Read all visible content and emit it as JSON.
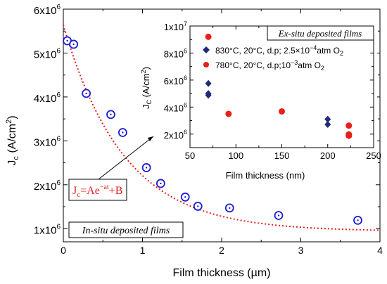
{
  "chart_data": [
    {
      "type": "scatter",
      "panel": "main",
      "xlabel": "Film thickness (µm)",
      "ylabel_main": "J",
      "ylabel_sub": "c",
      "ylabel_rest": " (A/cm",
      "ylabel_sup": "2",
      "ylabel_close": ")",
      "xlim": [
        0,
        4
      ],
      "ylim": [
        700000,
        6000000
      ],
      "x_ticks": [
        0,
        1,
        2,
        3,
        4
      ],
      "y_ticks": [
        {
          "value": 1000000,
          "mant": "1x10",
          "exp": "6"
        },
        {
          "value": 2000000,
          "mant": "2x10",
          "exp": "6"
        },
        {
          "value": 3000000,
          "mant": "3x10",
          "exp": "6"
        },
        {
          "value": 4000000,
          "mant": "4x10",
          "exp": "6"
        },
        {
          "value": 5000000,
          "mant": "5x10",
          "exp": "6"
        },
        {
          "value": 6000000,
          "mant": "6x10",
          "exp": "6"
        }
      ],
      "series": [
        {
          "marker": "open-circle-dot",
          "color": "#1c1cd6",
          "points": [
            [
              0.05,
              5280000
            ],
            [
              0.13,
              5200000
            ],
            [
              0.29,
              4080000
            ],
            [
              0.6,
              3600000
            ],
            [
              0.75,
              3190000
            ],
            [
              1.05,
              2390000
            ],
            [
              1.23,
              2030000
            ],
            [
              1.54,
              1720000
            ],
            [
              1.7,
              1510000
            ],
            [
              2.1,
              1470000
            ],
            [
              2.72,
              1300000
            ],
            [
              3.72,
              1190000
            ]
          ]
        }
      ],
      "fit": {
        "color": "#e0201e",
        "A": 4700000,
        "a": 1.31,
        "B": 940000,
        "label_pre": "J",
        "label_sub": "c",
        "label_mid": "=Ae",
        "label_sup": "−at",
        "label_post": "+B"
      },
      "annotation": "In-situ deposited films"
    },
    {
      "type": "scatter",
      "panel": "inset",
      "xlabel": "Film thickness (nm)",
      "ylabel_main": "J",
      "ylabel_sub": "C",
      "ylabel_rest": " (A/cm",
      "ylabel_sup": "2",
      "ylabel_close": ")",
      "xlim": [
        50,
        250
      ],
      "ylim": [
        1000000,
        10000000
      ],
      "x_ticks": [
        50,
        100,
        150,
        200,
        250
      ],
      "y_ticks": [
        {
          "value": 2000000,
          "mant": "2x10",
          "exp": "6"
        },
        {
          "value": 4000000,
          "mant": "4x10",
          "exp": "6"
        },
        {
          "value": 6000000,
          "mant": "6x10",
          "exp": "6"
        },
        {
          "value": 8000000,
          "mant": "8x10",
          "exp": "6"
        },
        {
          "value": 10000000,
          "mant": "1x10",
          "exp": "7"
        }
      ],
      "title": "Ex-situ deposited films",
      "series": [
        {
          "marker": "diamond",
          "color": "#1f2a7a",
          "legend_pre": "830°C, 20°C, d.p; 2.5×10",
          "legend_sup": "−4",
          "legend_post": "atm O",
          "legend_sub": "2",
          "points": [
            [
              70,
              5750000
            ],
            [
              70,
              5000000
            ],
            [
              70,
              4880000
            ],
            [
              200,
              3100000
            ],
            [
              200,
              2720000
            ]
          ]
        },
        {
          "marker": "filled-circle",
          "color": "#e8201a",
          "legend_pre": "780°C, 20°C, d.p;10",
          "legend_sup": "−3",
          "legend_post": "atm O",
          "legend_sub": "2",
          "points": [
            [
              70,
              9200000
            ],
            [
              92,
              3500000
            ],
            [
              150,
              3680000
            ],
            [
              223,
              2630000
            ],
            [
              223,
              1980000
            ],
            [
              223,
              1880000
            ]
          ]
        }
      ]
    }
  ]
}
